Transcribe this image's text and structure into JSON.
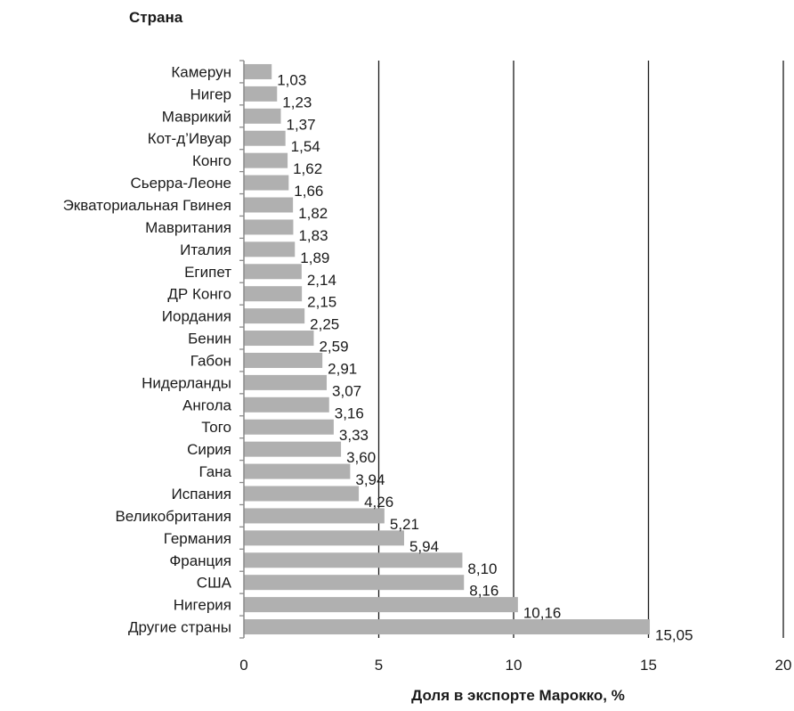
{
  "chart_data": {
    "type": "bar",
    "orientation": "horizontal",
    "title": "",
    "ylabel": "Страна",
    "xlabel": "Доля в экспорте Марокко, %",
    "xlim": [
      0,
      20
    ],
    "x_ticks": [
      "0",
      "5",
      "10",
      "15",
      "20"
    ],
    "grid": "vertical",
    "colors": {
      "bar": "#b0b0b0",
      "grid": "#1a1a1a",
      "text": "#1a1a1a"
    },
    "categories": [
      "Камерун",
      "Нигер",
      "Маврикий",
      "Кот-д’Ивуар",
      "Конго",
      "Сьерра-Леоне",
      "Экваториальная Гвинея",
      "Мавритания",
      "Италия",
      "Египет",
      "ДР Конго",
      "Иордания",
      "Бенин",
      "Габон",
      "Нидерланды",
      "Ангола",
      "Того",
      "Сирия",
      "Гана",
      "Испания",
      "Великобритания",
      "Германия",
      "Франция",
      "США",
      "Нигерия",
      "Другие страны"
    ],
    "values": [
      1.03,
      1.23,
      1.37,
      1.54,
      1.62,
      1.66,
      1.82,
      1.83,
      1.89,
      2.14,
      2.15,
      2.25,
      2.59,
      2.91,
      3.07,
      3.16,
      3.33,
      3.6,
      3.94,
      4.26,
      5.21,
      5.94,
      8.1,
      8.16,
      10.16,
      15.05
    ],
    "value_labels": [
      "1,03",
      "1,23",
      "1,37",
      "1,54",
      "1,62",
      "1,66",
      "1,82",
      "1,83",
      "1,89",
      "2,14",
      "2,15",
      "2,25",
      "2,59",
      "2,91",
      "3,07",
      "3,16",
      "3,33",
      "3,60",
      "3,94",
      "4,26",
      "5,21",
      "5,94",
      "8,10",
      "8,16",
      "10,16",
      "15,05"
    ]
  }
}
